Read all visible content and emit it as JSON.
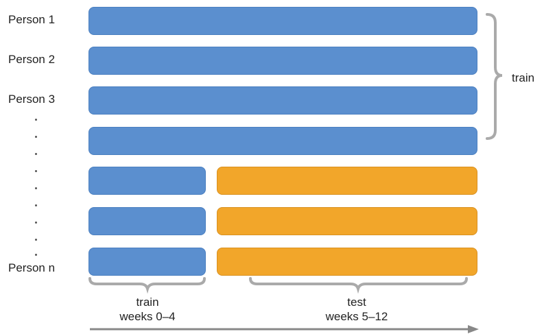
{
  "persons": {
    "p1": "Person 1",
    "p2": "Person 2",
    "p3": "Person 3",
    "pn": "Person n"
  },
  "labels": {
    "train_group": "train",
    "bottom_train": "train",
    "bottom_train_weeks": "weeks 0–4",
    "bottom_test": "test",
    "bottom_test_weeks": "weeks 5–12"
  },
  "colors": {
    "train": "#5b8fcf",
    "test": "#f2a62a",
    "bracket": "#aaaaaa",
    "axis": "#888888"
  }
}
